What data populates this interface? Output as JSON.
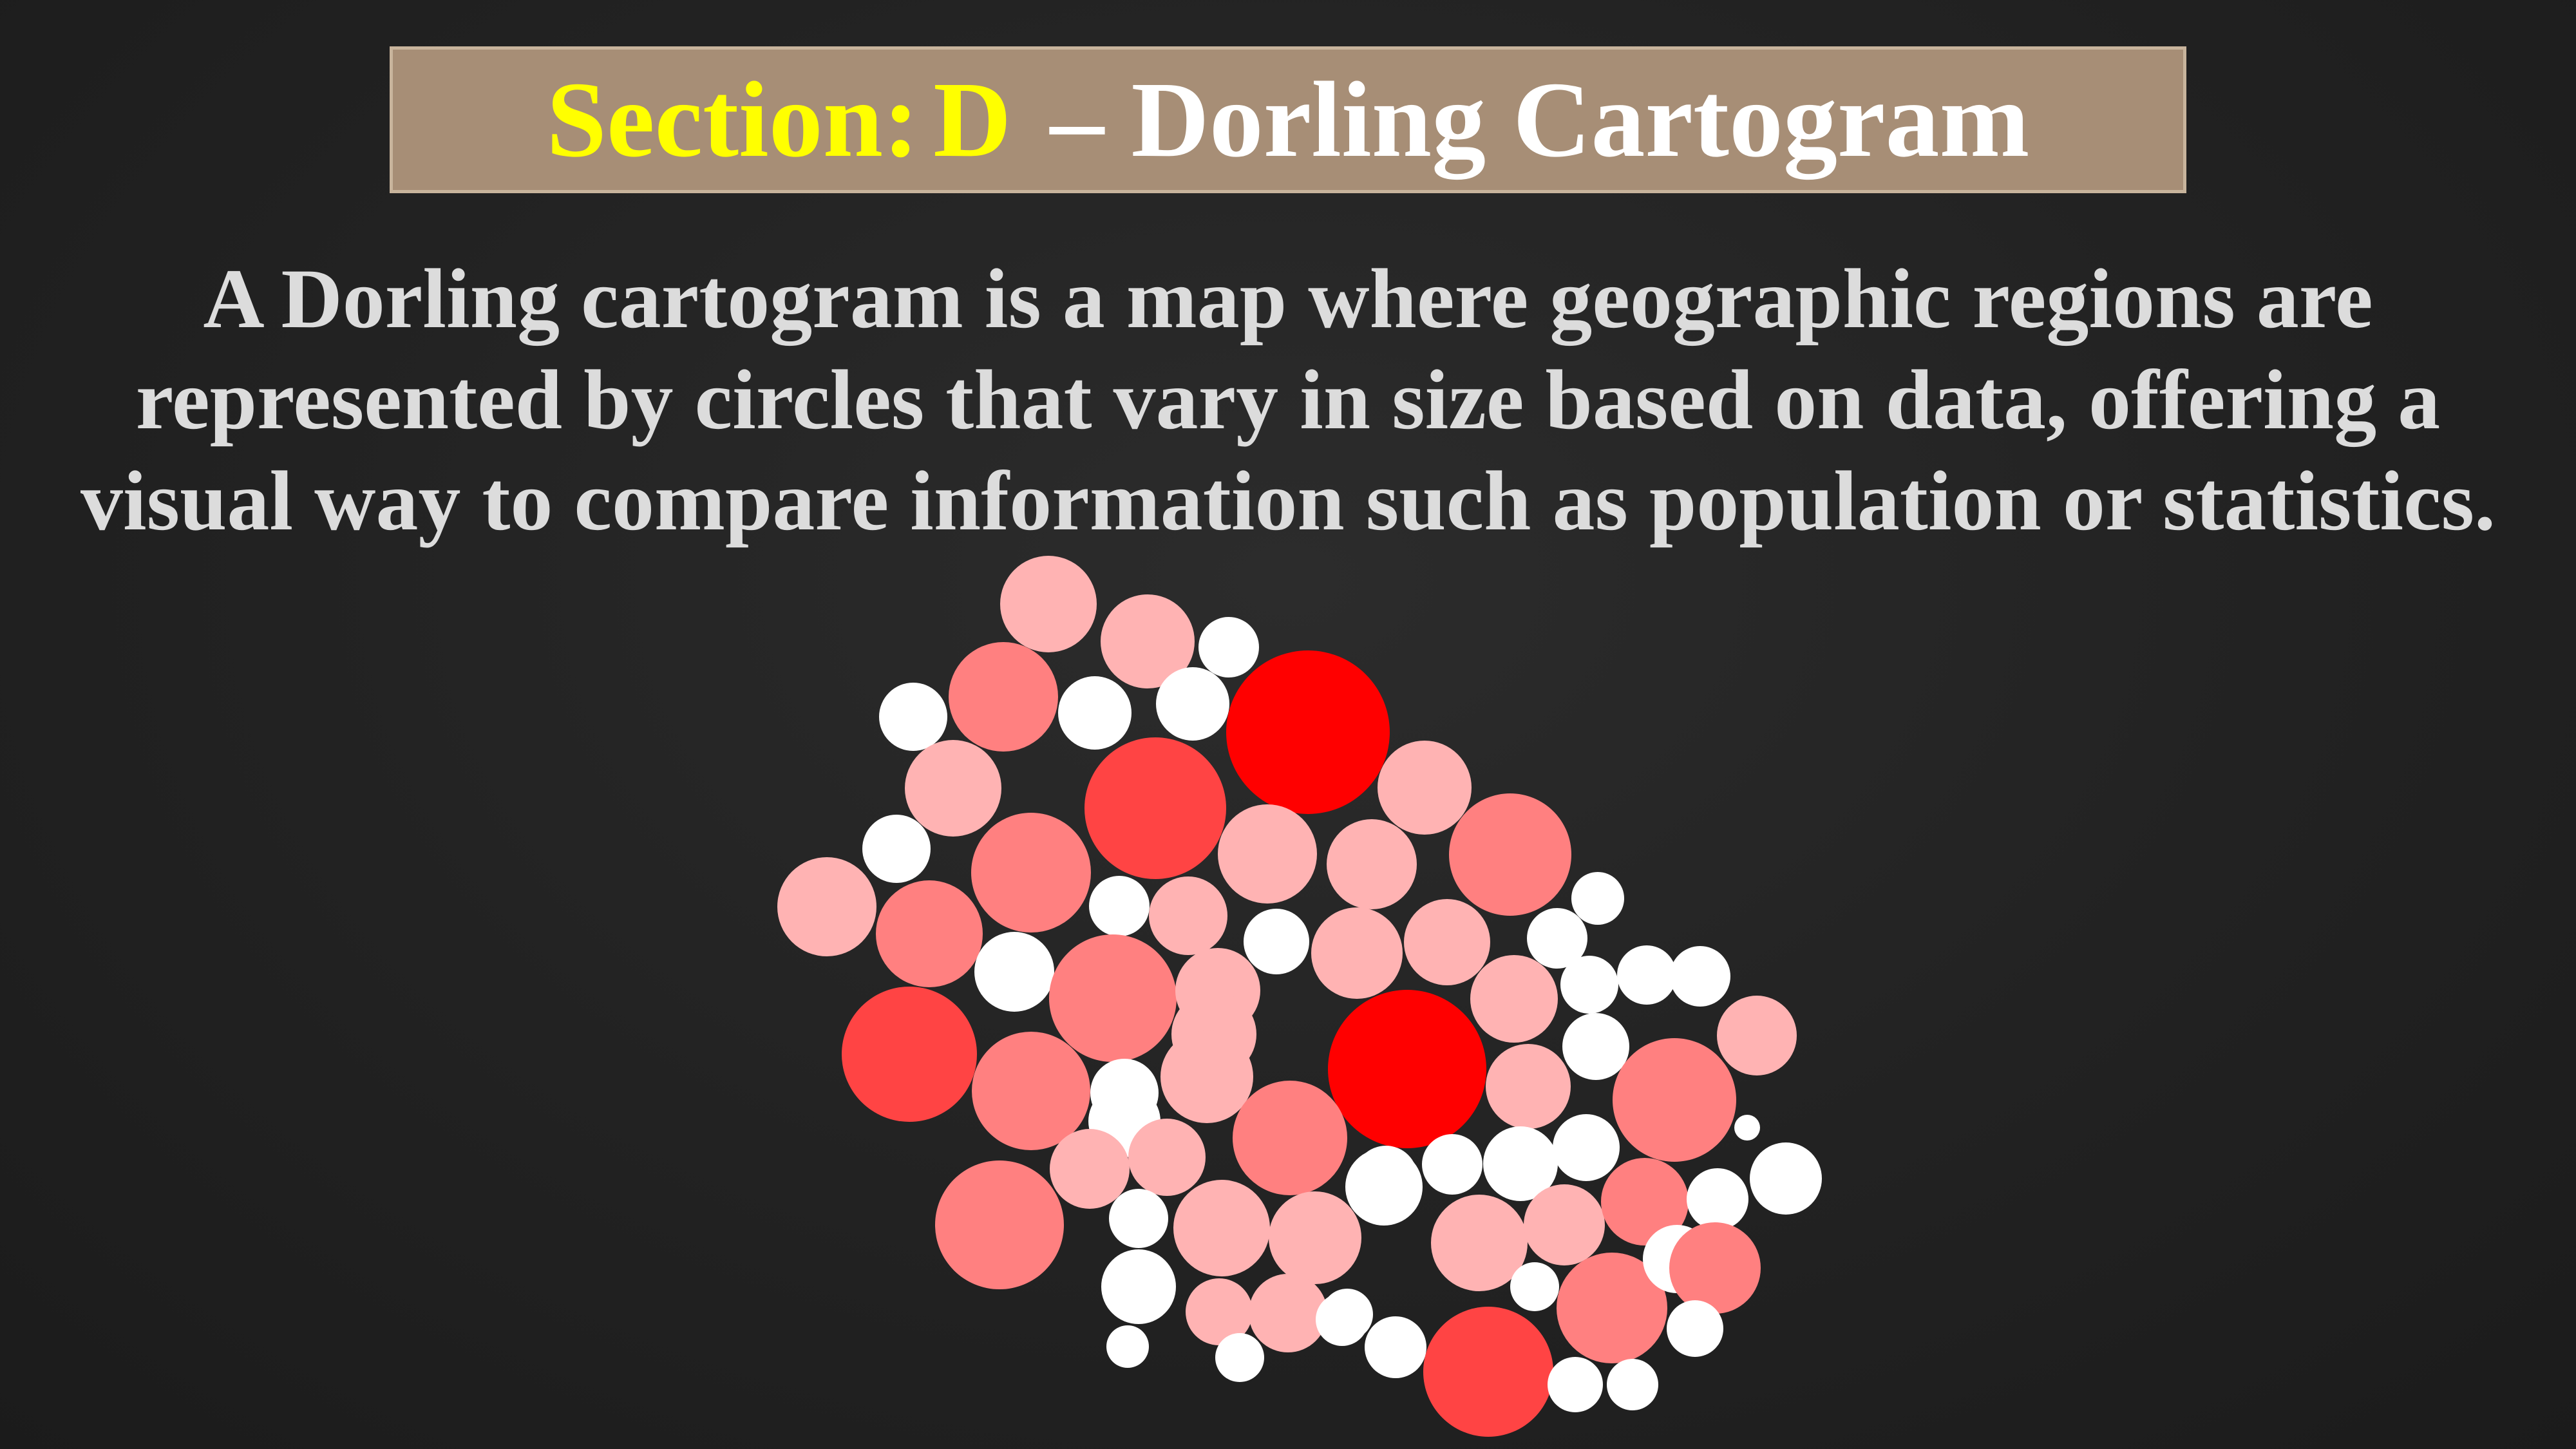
{
  "slide": {
    "title": {
      "section_label": "Section:",
      "section_letter": "D",
      "rest": "– Dorling Cartogram"
    },
    "description": "A Dorling cartogram is a map where geographic regions are represented by circles that vary in size based on data, offering a visual way to compare information such as population or statistics."
  },
  "colors": {
    "background": "#222222",
    "title_box": "#a78e76",
    "title_highlight": "#ffff00",
    "title_text": "#ffffff",
    "body_text": "#dcdcdc",
    "level_0": "#ffffff",
    "level_1": "#ffb3b3",
    "level_2": "#ff8080",
    "level_3": "#ff4444",
    "level_4": "#ff0000"
  },
  "cartogram": {
    "description_of_encoding": "circle area and color intensity encode data value",
    "regions": [
      {
        "level": 1
      },
      {
        "level": 1
      },
      {
        "level": 0
      },
      {
        "level": 2
      },
      {
        "level": 0
      },
      {
        "level": 0
      },
      {
        "level": 0
      },
      {
        "level": 4
      },
      {
        "level": 1
      },
      {
        "level": 3
      },
      {
        "level": 1
      },
      {
        "level": 0
      },
      {
        "level": 2
      },
      {
        "level": 1
      },
      {
        "level": 1
      },
      {
        "level": 2
      },
      {
        "level": 1
      },
      {
        "level": 2
      },
      {
        "level": 0
      },
      {
        "level": 1
      },
      {
        "level": 0
      },
      {
        "level": 1
      },
      {
        "level": 1
      },
      {
        "level": 0
      },
      {
        "level": 0
      },
      {
        "level": 0
      },
      {
        "level": 2
      },
      {
        "level": 1
      },
      {
        "level": 1
      },
      {
        "level": 0
      },
      {
        "level": 0
      },
      {
        "level": 0
      },
      {
        "level": 3
      },
      {
        "level": 2
      },
      {
        "level": 1
      },
      {
        "level": 1
      },
      {
        "level": 4
      },
      {
        "level": 0
      },
      {
        "level": 1
      },
      {
        "level": 0
      },
      {
        "level": 1
      },
      {
        "level": 0
      },
      {
        "level": 2
      },
      {
        "level": 2
      },
      {
        "level": 0
      },
      {
        "level": 1
      },
      {
        "level": 0
      },
      {
        "level": 0
      },
      {
        "level": 0
      },
      {
        "level": 2
      },
      {
        "level": 1
      },
      {
        "level": 1
      },
      {
        "level": 1
      },
      {
        "level": 1
      },
      {
        "level": 0
      },
      {
        "level": 0
      },
      {
        "level": 0
      },
      {
        "level": 1
      },
      {
        "level": 0
      },
      {
        "level": 1
      },
      {
        "level": 0
      },
      {
        "level": 0
      },
      {
        "level": 0
      },
      {
        "level": 0
      },
      {
        "level": 0
      },
      {
        "level": 3
      },
      {
        "level": 2
      },
      {
        "level": 0
      },
      {
        "level": 0
      },
      {
        "level": 0
      },
      {
        "level": 1
      }
    ]
  }
}
